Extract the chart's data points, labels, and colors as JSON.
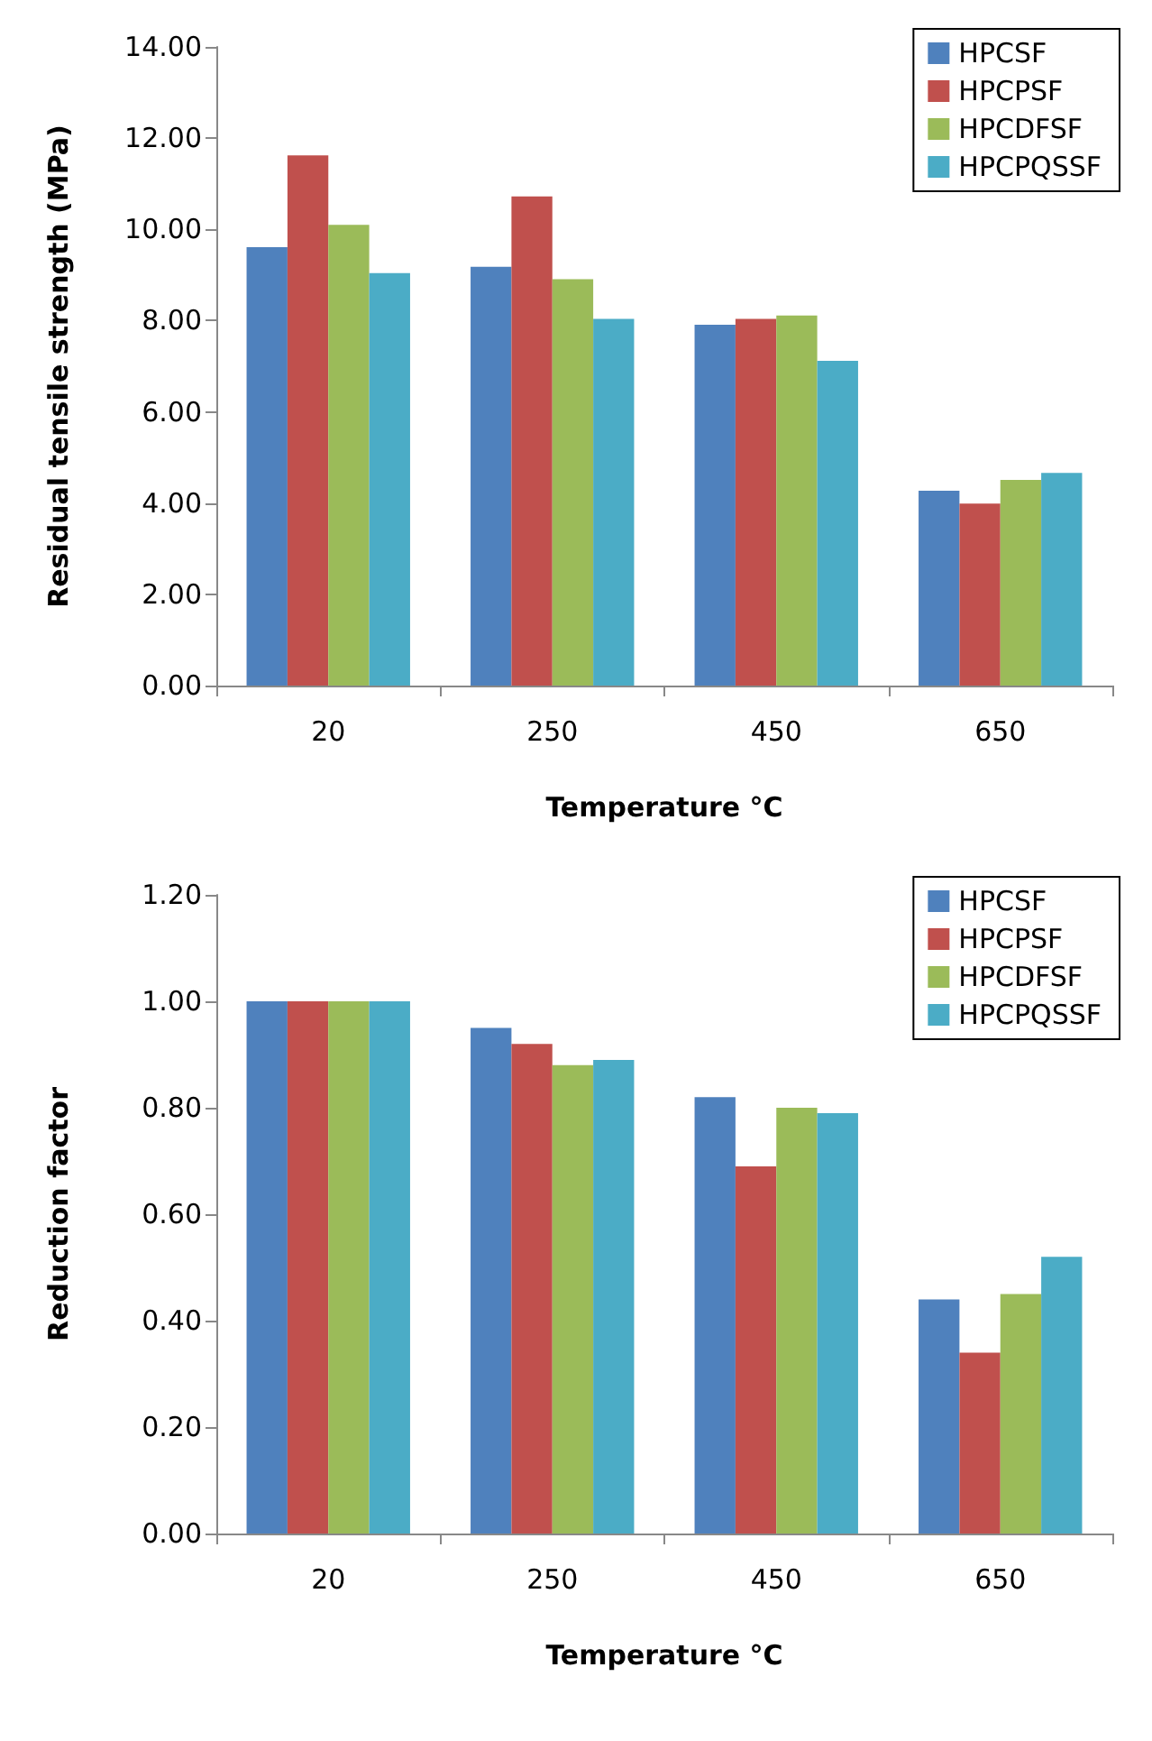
{
  "chart_data": [
    {
      "type": "bar",
      "xlabel": "Temperature °C",
      "ylabel": "Residual tensile strength (MPa)",
      "categories": [
        "20",
        "250",
        "450",
        "650"
      ],
      "series": [
        {
          "name": "HPCSF",
          "color": "#4f81bd",
          "values": [
            9.61,
            9.18,
            7.91,
            4.27
          ]
        },
        {
          "name": "HPCPSF",
          "color": "#c0504d",
          "values": [
            11.62,
            10.72,
            8.04,
            3.99
          ]
        },
        {
          "name": "HPCDFSF",
          "color": "#9bbb59",
          "values": [
            10.1,
            8.91,
            8.11,
            4.51
          ]
        },
        {
          "name": "HPCPQSSF",
          "color": "#4bacc6",
          "values": [
            9.04,
            8.04,
            7.12,
            4.66
          ]
        }
      ],
      "ylim": [
        0,
        14
      ],
      "yticks": [
        {
          "value": 0,
          "label": "0.00"
        },
        {
          "value": 2,
          "label": "2.00"
        },
        {
          "value": 4,
          "label": "4.00"
        },
        {
          "value": 6,
          "label": "6.00"
        },
        {
          "value": 8,
          "label": "8.00"
        },
        {
          "value": 10,
          "label": "10.00"
        },
        {
          "value": 12,
          "label": "12.00"
        },
        {
          "value": 14,
          "label": "14.00"
        }
      ],
      "grid": false,
      "legend": "top right"
    },
    {
      "type": "bar",
      "xlabel": "Temperature °C",
      "ylabel": "Reduction factor",
      "categories": [
        "20",
        "250",
        "450",
        "650"
      ],
      "series": [
        {
          "name": "HPCSF",
          "color": "#4f81bd",
          "values": [
            1.0,
            0.95,
            0.82,
            0.44
          ]
        },
        {
          "name": "HPCPSF",
          "color": "#c0504d",
          "values": [
            1.0,
            0.92,
            0.69,
            0.34
          ]
        },
        {
          "name": "HPCDFSF",
          "color": "#9bbb59",
          "values": [
            1.0,
            0.88,
            0.8,
            0.45
          ]
        },
        {
          "name": "HPCPQSSF",
          "color": "#4bacc6",
          "values": [
            1.0,
            0.89,
            0.79,
            0.52
          ]
        }
      ],
      "ylim": [
        0,
        1.2
      ],
      "yticks": [
        {
          "value": 0,
          "label": "0.00"
        },
        {
          "value": 0.2,
          "label": "0.20"
        },
        {
          "value": 0.4,
          "label": "0.40"
        },
        {
          "value": 0.6,
          "label": "0.60"
        },
        {
          "value": 0.8,
          "label": "0.80"
        },
        {
          "value": 1.0,
          "label": "1.00"
        },
        {
          "value": 1.2,
          "label": "1.20"
        }
      ],
      "grid": false,
      "legend": "top right"
    }
  ]
}
